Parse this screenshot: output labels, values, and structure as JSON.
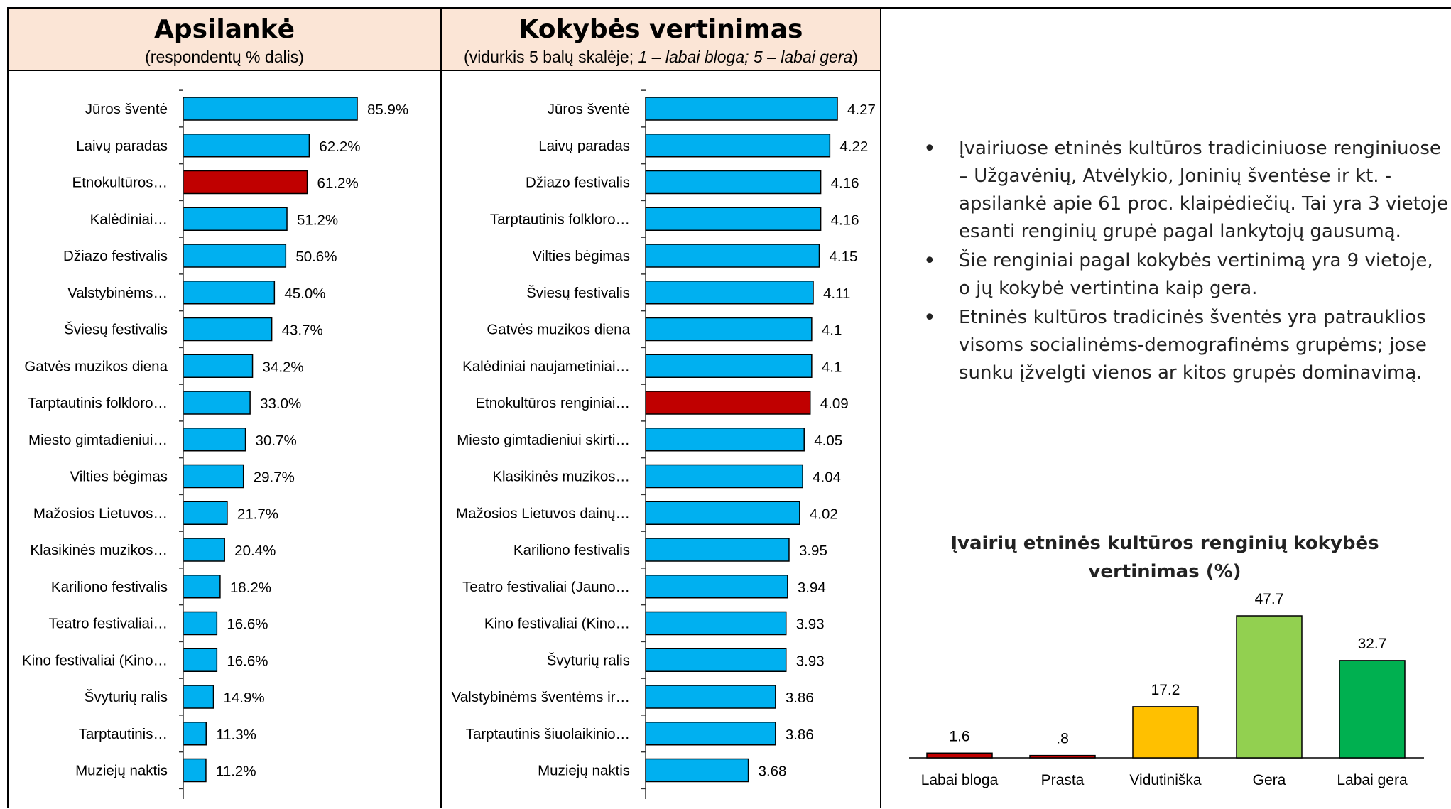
{
  "chart_data": [
    {
      "type": "bar",
      "orientation": "horizontal",
      "title": "Apsilankė",
      "subtitle": "(respondentų % dalis)",
      "categories": [
        "Jūros šventė",
        "Laivų paradas",
        "Etnokultūros…",
        "Kalėdiniai…",
        "Džiazo festivalis",
        "Valstybinėms…",
        "Šviesų festivalis",
        "Gatvės muzikos diena",
        "Tarptautinis folkloro…",
        "Miesto gimtadieniui…",
        "Vilties bėgimas",
        "Mažosios Lietuvos…",
        "Klasikinės muzikos…",
        "Kariliono festivalis",
        "Teatro festivaliai…",
        "Kino festivaliai (Kino…",
        "Švyturių ralis",
        "Tarptautinis…",
        "Muziejų naktis"
      ],
      "values": [
        85.9,
        62.2,
        61.2,
        51.2,
        50.6,
        45.0,
        43.7,
        34.2,
        33.0,
        30.7,
        29.7,
        21.7,
        20.4,
        18.2,
        16.6,
        16.6,
        14.9,
        11.3,
        11.2
      ],
      "labels": [
        "85.9%",
        "62.2%",
        "61.2%",
        "51.2%",
        "50.6%",
        "45.0%",
        "43.7%",
        "34.2%",
        "33.0%",
        "30.7%",
        "29.7%",
        "21.7%",
        "20.4%",
        "18.2%",
        "16.6%",
        "16.6%",
        "14.9%",
        "11.3%",
        "11.2%"
      ],
      "highlight_index": 2,
      "colors": {
        "bar": "#00b0f0",
        "highlight": "#c00000"
      }
    },
    {
      "type": "bar",
      "orientation": "horizontal",
      "title": "Kokybės vertinimas",
      "subtitle_plain": "(vidurkis 5 balų skalėje; ",
      "subtitle_italic": "1 – labai bloga; 5 – labai gera",
      "subtitle_end": ")",
      "categories": [
        "Jūros šventė",
        "Laivų paradas",
        "Džiazo festivalis",
        "Tarptautinis folkloro…",
        "Vilties bėgimas",
        "Šviesų festivalis",
        "Gatvės muzikos diena",
        "Kalėdiniai naujametiniai…",
        "Etnokultūros renginiai…",
        "Miesto gimtadieniui skirti…",
        "Klasikinės muzikos…",
        "Mažosios Lietuvos dainų…",
        "Kariliono festivalis",
        "Teatro festivaliai (Jauno…",
        "Kino festivaliai (Kino…",
        "Švyturių ralis",
        "Valstybinėms šventėms ir…",
        "Tarptautinis šiuolaikinio…",
        "Muziejų naktis"
      ],
      "values": [
        4.27,
        4.22,
        4.16,
        4.16,
        4.15,
        4.11,
        4.1,
        4.1,
        4.09,
        4.05,
        4.04,
        4.02,
        3.95,
        3.94,
        3.93,
        3.93,
        3.86,
        3.86,
        3.68
      ],
      "labels": [
        "4.27",
        "4.22",
        "4.16",
        "4.16",
        "4.15",
        "4.11",
        "4.1",
        "4.1",
        "4.09",
        "4.05",
        "4.04",
        "4.02",
        "3.95",
        "3.94",
        "3.93",
        "3.93",
        "3.86",
        "3.86",
        "3.68"
      ],
      "xlim": [
        3.0,
        4.3
      ],
      "highlight_index": 8,
      "colors": {
        "bar": "#00b0f0",
        "highlight": "#c00000"
      }
    },
    {
      "type": "bar",
      "orientation": "vertical",
      "title": "Įvairių etninės kultūros renginių kokybės vertinimas (%)",
      "categories": [
        "Labai bloga",
        "Prasta",
        "Vidutiniška",
        "Gera",
        "Labai gera"
      ],
      "values": [
        1.6,
        0.8,
        17.2,
        47.7,
        32.7
      ],
      "labels": [
        "1.6",
        ".8",
        "17.2",
        "47.7",
        "32.7"
      ],
      "colors": [
        "#c00000",
        "#c00000",
        "#ffc000",
        "#92d050",
        "#00b050"
      ]
    }
  ],
  "bullets": [
    "Įvairiuose etninės kultūros tradiciniuose renginiuose – Užgavėnių, Atvėlykio, Joninių šventėse ir kt. - apsilankė apie 61 proc. klaipėdiečių. Tai yra 3 vietoje esanti renginių grupė pagal lankytojų gausumą.",
    "Šie renginiai pagal kokybės vertinimą yra 9 vietoje, o jų kokybė vertintina kaip gera.",
    "Etninės kultūros tradicinės šventės yra patrauklios visoms socialinėms-demografinėms grupėms; jose sunku įžvelgti vienos ar kitos grupės dominavimą."
  ]
}
